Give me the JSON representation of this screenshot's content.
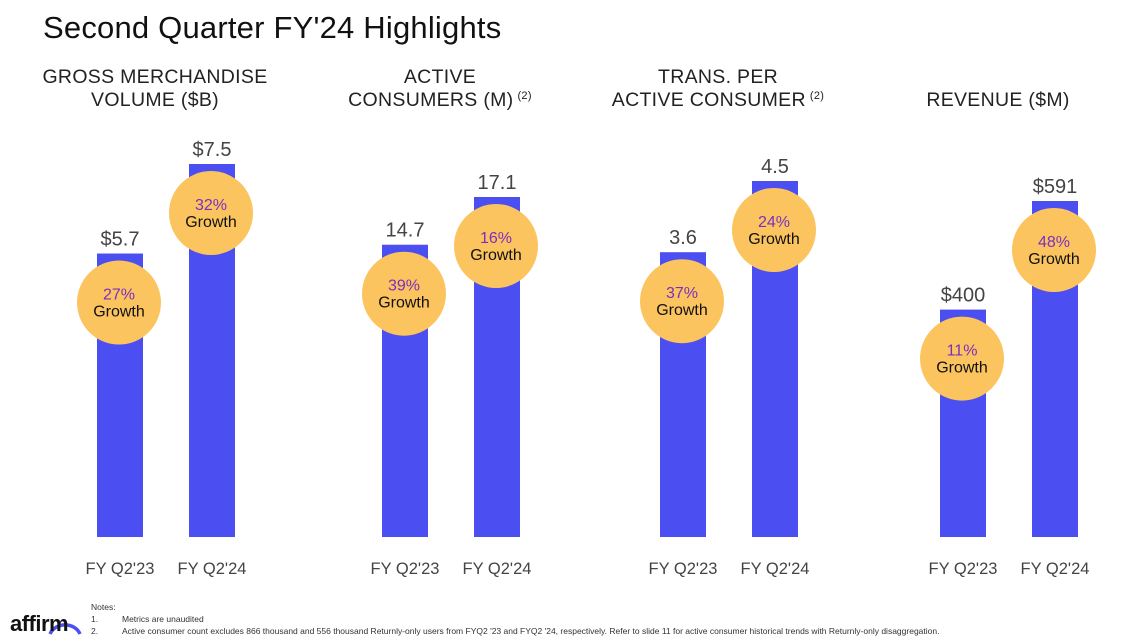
{
  "title": "Second Quarter FY'24 Highlights",
  "colors": {
    "bar": "#4b4ef0",
    "bubble": "#fcc45e",
    "pct_text": "#7a2fbf"
  },
  "growth_word": "Growth",
  "chart_data": [
    {
      "type": "bar",
      "title": "GROSS MERCHANDISE VOLUME ($B)",
      "title_lines": [
        "GROSS MERCHANDISE",
        "VOLUME ($B)"
      ],
      "title_sup": "",
      "categories": [
        "FY Q2'23",
        "FY Q2'24"
      ],
      "values": [
        5.7,
        7.5
      ],
      "labels": [
        "$5.7",
        "$7.5"
      ],
      "growth": [
        "27%",
        "32%"
      ]
    },
    {
      "type": "bar",
      "title": "ACTIVE CONSUMERS (M)",
      "title_lines": [
        "ACTIVE",
        "CONSUMERS (M)"
      ],
      "title_sup": "(2)",
      "categories": [
        "FY Q2'23",
        "FY Q2'24"
      ],
      "values": [
        14.7,
        17.1
      ],
      "labels": [
        "14.7",
        "17.1"
      ],
      "growth": [
        "39%",
        "16%"
      ]
    },
    {
      "type": "bar",
      "title": "TRANS. PER ACTIVE CONSUMER",
      "title_lines": [
        "TRANS. PER",
        "ACTIVE CONSUMER"
      ],
      "title_sup": "(2)",
      "categories": [
        "FY Q2'23",
        "FY Q2'24"
      ],
      "values": [
        3.6,
        4.5
      ],
      "labels": [
        "3.6",
        "4.5"
      ],
      "growth": [
        "37%",
        "24%"
      ]
    },
    {
      "type": "bar",
      "title": "REVENUE ($M)",
      "title_lines": [
        "",
        "REVENUE ($M)"
      ],
      "title_sup": "",
      "categories": [
        "FY Q2'23",
        "FY Q2'24"
      ],
      "values": [
        400,
        591
      ],
      "labels": [
        "$400",
        "$591"
      ],
      "growth": [
        "11%",
        "48%"
      ]
    }
  ],
  "logo": {
    "text": "affirm"
  },
  "notes": {
    "header": "Notes:",
    "items": [
      {
        "num": "1.",
        "text": "Metrics are unaudited"
      },
      {
        "num": "2.",
        "text": "Active consumer count excludes 866 thousand and 556 thousand Returnly-only users from FYQ2 '23 and FYQ2 '24, respectively. Refer to slide 11 for active consumer historical trends with Returnly-only disaggregation."
      }
    ]
  }
}
